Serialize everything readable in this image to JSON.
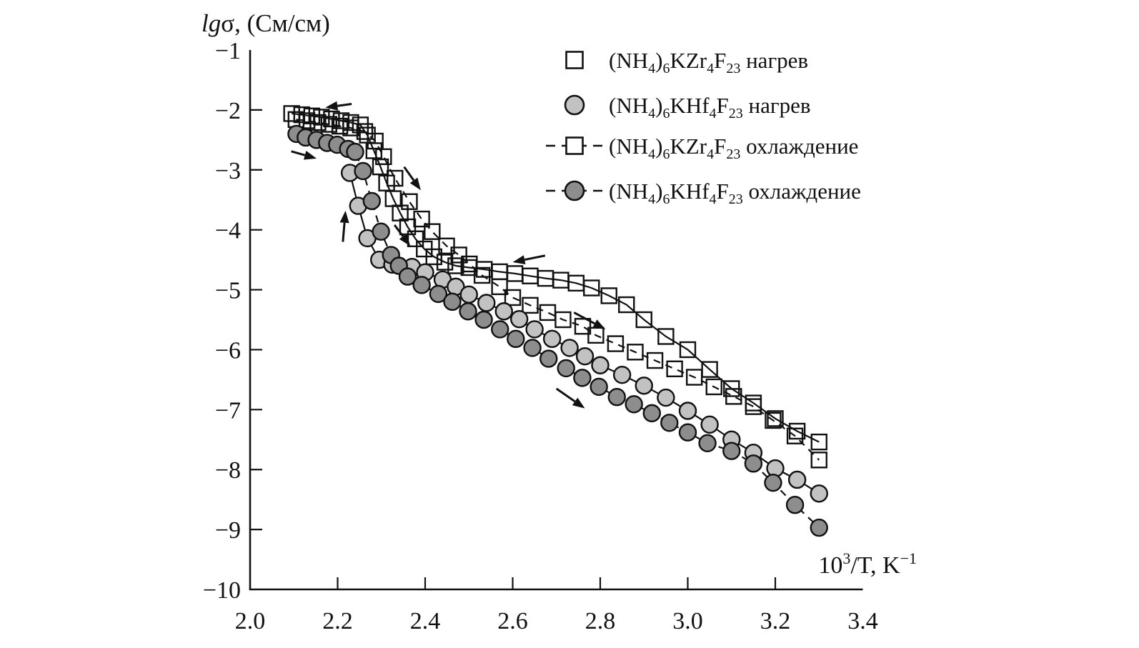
{
  "figure_title": "",
  "colors": {
    "axis": "#111111",
    "marker_stroke": "#111111",
    "light_circle_fill": "#c2c2c2",
    "dark_circle_fill": "#8d8d8d",
    "square_fill": "none",
    "background": "#ffffff"
  },
  "chart_data": {
    "type": "line",
    "title": "",
    "grid": false,
    "legend_position": "top-right",
    "x_axis": {
      "label": "10^{3}/T, K^{−1}",
      "range": [
        2.0,
        3.4
      ],
      "tick_values": [
        2.0,
        2.2,
        2.4,
        2.6,
        2.8,
        3.0,
        3.2,
        3.4
      ],
      "tick_labels": [
        "2.0",
        "2.2",
        "2.4",
        "2.6",
        "2.8",
        "3.0",
        "3.2",
        "3.4"
      ]
    },
    "y_axis": {
      "label": "*{lg}σ, (См/см)",
      "range": [
        -10,
        -1
      ],
      "tick_values": [
        -1,
        -2,
        -3,
        -4,
        -5,
        -6,
        -7,
        -8,
        -9,
        -10
      ],
      "tick_labels": [
        "−1",
        "−2",
        "−3",
        "−4",
        "−5",
        "−6",
        "−7",
        "−8",
        "−9",
        "−10"
      ]
    },
    "series": [
      {
        "id": "zr-heating",
        "name": "(NH_{4})_{6}KZr_{4}F_{23} нагрев",
        "marker": "square",
        "marker_fill": "none",
        "line": "solid",
        "points": [
          [
            2.095,
            -2.06
          ],
          [
            2.118,
            -2.08
          ],
          [
            2.141,
            -2.1
          ],
          [
            2.163,
            -2.12
          ],
          [
            2.186,
            -2.15
          ],
          [
            2.208,
            -2.18
          ],
          [
            2.23,
            -2.21
          ],
          [
            2.252,
            -2.25
          ],
          [
            2.268,
            -2.42
          ],
          [
            2.283,
            -2.68
          ],
          [
            2.298,
            -2.95
          ],
          [
            2.312,
            -3.22
          ],
          [
            2.327,
            -3.48
          ],
          [
            2.343,
            -3.72
          ],
          [
            2.36,
            -3.95
          ],
          [
            2.378,
            -4.15
          ],
          [
            2.398,
            -4.32
          ],
          [
            2.42,
            -4.45
          ],
          [
            2.445,
            -4.54
          ],
          [
            2.47,
            -4.6
          ],
          [
            2.5,
            -4.63
          ],
          [
            2.535,
            -4.66
          ],
          [
            2.57,
            -4.7
          ],
          [
            2.605,
            -4.73
          ],
          [
            2.64,
            -4.77
          ],
          [
            2.675,
            -4.81
          ],
          [
            2.71,
            -4.84
          ],
          [
            2.745,
            -4.89
          ],
          [
            2.78,
            -4.97
          ],
          [
            2.82,
            -5.1
          ],
          [
            2.86,
            -5.25
          ],
          [
            2.9,
            -5.5
          ],
          [
            2.95,
            -5.78
          ],
          [
            3.0,
            -6.0
          ],
          [
            3.05,
            -6.33
          ],
          [
            3.1,
            -6.65
          ],
          [
            3.15,
            -6.89
          ],
          [
            3.2,
            -7.15
          ],
          [
            3.25,
            -7.36
          ],
          [
            3.3,
            -7.54
          ]
        ]
      },
      {
        "id": "hf-heating",
        "name": "(NH_{4})_{6}KHf_{4}F_{23} нагрев",
        "marker": "circle",
        "marker_fill": "#c2c2c2",
        "line": "solid",
        "points": [
          [
            2.228,
            -3.05
          ],
          [
            2.247,
            -3.6
          ],
          [
            2.268,
            -4.14
          ],
          [
            2.295,
            -4.5
          ],
          [
            2.325,
            -4.58
          ],
          [
            2.37,
            -4.62
          ],
          [
            2.4,
            -4.71
          ],
          [
            2.44,
            -4.83
          ],
          [
            2.47,
            -4.95
          ],
          [
            2.5,
            -5.08
          ],
          [
            2.54,
            -5.22
          ],
          [
            2.58,
            -5.36
          ],
          [
            2.615,
            -5.49
          ],
          [
            2.65,
            -5.66
          ],
          [
            2.69,
            -5.82
          ],
          [
            2.73,
            -5.97
          ],
          [
            2.765,
            -6.11
          ],
          [
            2.8,
            -6.26
          ],
          [
            2.85,
            -6.42
          ],
          [
            2.9,
            -6.6
          ],
          [
            2.95,
            -6.8
          ],
          [
            3.0,
            -7.02
          ],
          [
            3.05,
            -7.25
          ],
          [
            3.1,
            -7.5
          ],
          [
            3.15,
            -7.72
          ],
          [
            3.2,
            -7.98
          ],
          [
            3.25,
            -8.17
          ],
          [
            3.3,
            -8.4
          ]
        ]
      },
      {
        "id": "zr-cooling",
        "name": "(NH_{4})_{6}KZr_{4}F_{23} охлаждение",
        "marker": "square",
        "marker_fill": "none",
        "line": "dashed",
        "points": [
          [
            2.105,
            -2.16
          ],
          [
            2.13,
            -2.18
          ],
          [
            2.155,
            -2.21
          ],
          [
            2.18,
            -2.24
          ],
          [
            2.205,
            -2.27
          ],
          [
            2.23,
            -2.3
          ],
          [
            2.262,
            -2.36
          ],
          [
            2.286,
            -2.52
          ],
          [
            2.305,
            -2.78
          ],
          [
            2.331,
            -3.14
          ],
          [
            2.364,
            -3.53
          ],
          [
            2.392,
            -3.82
          ],
          [
            2.416,
            -4.03
          ],
          [
            2.449,
            -4.27
          ],
          [
            2.477,
            -4.42
          ],
          [
            2.501,
            -4.57
          ],
          [
            2.53,
            -4.76
          ],
          [
            2.57,
            -4.95
          ],
          [
            2.6,
            -5.13
          ],
          [
            2.64,
            -5.26
          ],
          [
            2.68,
            -5.38
          ],
          [
            2.715,
            -5.5
          ],
          [
            2.76,
            -5.61
          ],
          [
            2.79,
            -5.76
          ],
          [
            2.835,
            -5.9
          ],
          [
            2.88,
            -6.04
          ],
          [
            2.925,
            -6.18
          ],
          [
            2.97,
            -6.32
          ],
          [
            3.015,
            -6.46
          ],
          [
            3.06,
            -6.62
          ],
          [
            3.105,
            -6.78
          ],
          [
            3.15,
            -6.95
          ],
          [
            3.195,
            -7.18
          ],
          [
            3.245,
            -7.44
          ],
          [
            3.3,
            -7.84
          ]
        ]
      },
      {
        "id": "hf-cooling",
        "name": "(NH_{4})_{6}KHf_{4}F_{23} охлаждение",
        "marker": "circle",
        "marker_fill": "#8d8d8d",
        "line": "dashed",
        "points": [
          [
            2.106,
            -2.4
          ],
          [
            2.127,
            -2.46
          ],
          [
            2.152,
            -2.5
          ],
          [
            2.176,
            -2.55
          ],
          [
            2.199,
            -2.58
          ],
          [
            2.224,
            -2.65
          ],
          [
            2.24,
            -2.7
          ],
          [
            2.258,
            -3.02
          ],
          [
            2.278,
            -3.52
          ],
          [
            2.299,
            -4.03
          ],
          [
            2.322,
            -4.42
          ],
          [
            2.34,
            -4.6
          ],
          [
            2.36,
            -4.78
          ],
          [
            2.392,
            -4.92
          ],
          [
            2.43,
            -5.07
          ],
          [
            2.462,
            -5.2
          ],
          [
            2.498,
            -5.36
          ],
          [
            2.534,
            -5.5
          ],
          [
            2.571,
            -5.66
          ],
          [
            2.607,
            -5.82
          ],
          [
            2.645,
            -5.97
          ],
          [
            2.682,
            -6.15
          ],
          [
            2.722,
            -6.31
          ],
          [
            2.759,
            -6.47
          ],
          [
            2.797,
            -6.62
          ],
          [
            2.838,
            -6.79
          ],
          [
            2.877,
            -6.91
          ],
          [
            2.918,
            -7.06
          ],
          [
            2.958,
            -7.22
          ],
          [
            3.0,
            -7.38
          ],
          [
            3.045,
            -7.56
          ],
          [
            3.1,
            -7.69
          ],
          [
            3.15,
            -7.9
          ],
          [
            3.195,
            -8.22
          ],
          [
            3.245,
            -8.59
          ],
          [
            3.3,
            -8.97
          ]
        ]
      }
    ],
    "annotations": {
      "arrows": [
        {
          "from": [
            2.232,
            -1.9
          ],
          "to": [
            2.172,
            -1.96
          ]
        },
        {
          "from": [
            2.094,
            -2.69
          ],
          "to": [
            2.152,
            -2.81
          ]
        },
        {
          "from": [
            2.352,
            -2.95
          ],
          "to": [
            2.39,
            -3.34
          ]
        },
        {
          "from": [
            2.212,
            -4.2
          ],
          "to": [
            2.218,
            -3.68
          ]
        },
        {
          "from": [
            2.33,
            -3.92
          ],
          "to": [
            2.366,
            -4.27
          ]
        },
        {
          "from": [
            2.674,
            -4.43
          ],
          "to": [
            2.6,
            -4.54
          ]
        },
        {
          "from": [
            2.74,
            -5.38
          ],
          "to": [
            2.812,
            -5.66
          ]
        },
        {
          "from": [
            2.7,
            -6.65
          ],
          "to": [
            2.765,
            -6.98
          ]
        }
      ]
    }
  },
  "legend": {
    "items": [
      {
        "label": "(NH_{4})_{6}KZr_{4}F_{23} нагрев",
        "marker": "square",
        "marker_fill": "none",
        "line": "none"
      },
      {
        "label": "(NH_{4})_{6}KHf_{4}F_{23} нагрев",
        "marker": "circle",
        "marker_fill": "#c2c2c2",
        "line": "none"
      },
      {
        "label": "(NH_{4})_{6}KZr_{4}F_{23} охлаждение",
        "marker": "square",
        "marker_fill": "none",
        "line": "dashed"
      },
      {
        "label": "(NH_{4})_{6}KHf_{4}F_{23} охлаждение",
        "marker": "circle",
        "marker_fill": "#8d8d8d",
        "line": "dashed"
      }
    ]
  }
}
